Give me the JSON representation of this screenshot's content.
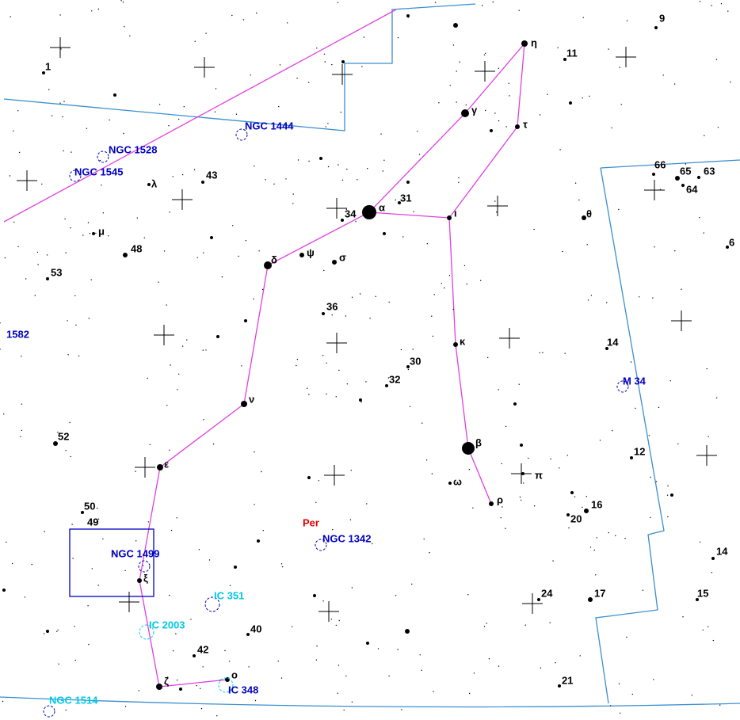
{
  "map": {
    "constellation": "Per",
    "star_numbers": [
      "9",
      "11",
      "1",
      "43",
      "31",
      "34",
      "66",
      "65",
      "63",
      "64",
      "48",
      "53",
      "36",
      "14",
      "30",
      "32",
      "52",
      "12",
      "50",
      "49",
      "16",
      "20",
      "14",
      "24",
      "17",
      "15",
      "40",
      "42",
      "21",
      "6"
    ],
    "greek_letters": [
      "η",
      "γ",
      "τ",
      "α",
      "ι",
      "θ",
      "λ",
      "μ",
      "δ",
      "ψ",
      "σ",
      "κ",
      "ν",
      "β",
      "ε",
      "π",
      "ω",
      "ρ",
      "ξ",
      "ζ",
      "ο"
    ],
    "deep_sky_objects": [
      "NGC 1444",
      "NGC 1528",
      "NGC 1545",
      "1582",
      "M 34",
      "NGC 1499",
      "NGC 1342",
      "IC 351",
      "IC 2003",
      "IC 348",
      "NGC 1514"
    ]
  }
}
